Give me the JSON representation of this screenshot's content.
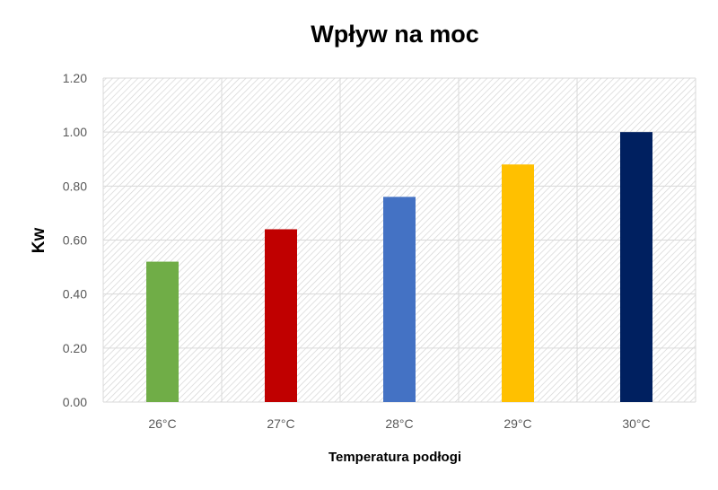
{
  "chart_data": {
    "type": "bar",
    "title": "Wpływ na moc",
    "xlabel": "Temperatura podłogi",
    "ylabel": "Kw",
    "categories": [
      "26°C",
      "27°C",
      "28°C",
      "29°C",
      "30°C"
    ],
    "values": [
      0.52,
      0.64,
      0.76,
      0.88,
      1.0
    ],
    "colors": [
      "#70AD47",
      "#C00000",
      "#4472C4",
      "#FFC000",
      "#002060"
    ],
    "ylim": [
      0,
      1.2
    ],
    "yticks": [
      "0.00",
      "0.20",
      "0.40",
      "0.60",
      "0.80",
      "1.00",
      "1.20"
    ],
    "grid": true,
    "legend": "none"
  }
}
